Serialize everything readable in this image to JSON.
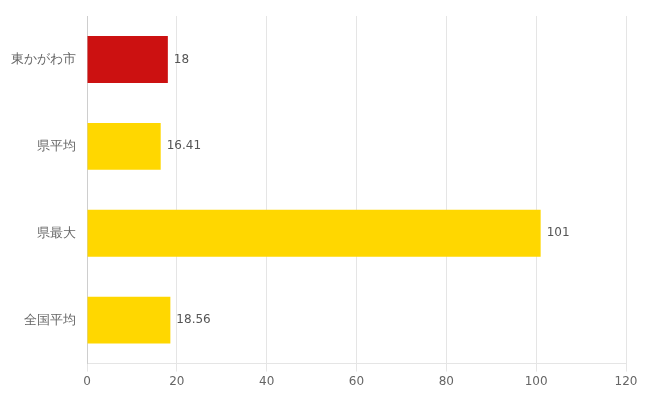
{
  "chart_data": {
    "type": "bar",
    "orientation": "horizontal",
    "categories": [
      "全国平均",
      "県最大",
      "県平均",
      "東かがわ市"
    ],
    "values": [
      18.56,
      101,
      16.41,
      18
    ],
    "colors": [
      "#FFD700",
      "#FFD700",
      "#FFD700",
      "#CC1111"
    ],
    "data_labels": true,
    "xlim": [
      0,
      120
    ],
    "xticks": [
      0,
      20,
      40,
      60,
      80,
      100,
      120
    ],
    "grid": true
  }
}
